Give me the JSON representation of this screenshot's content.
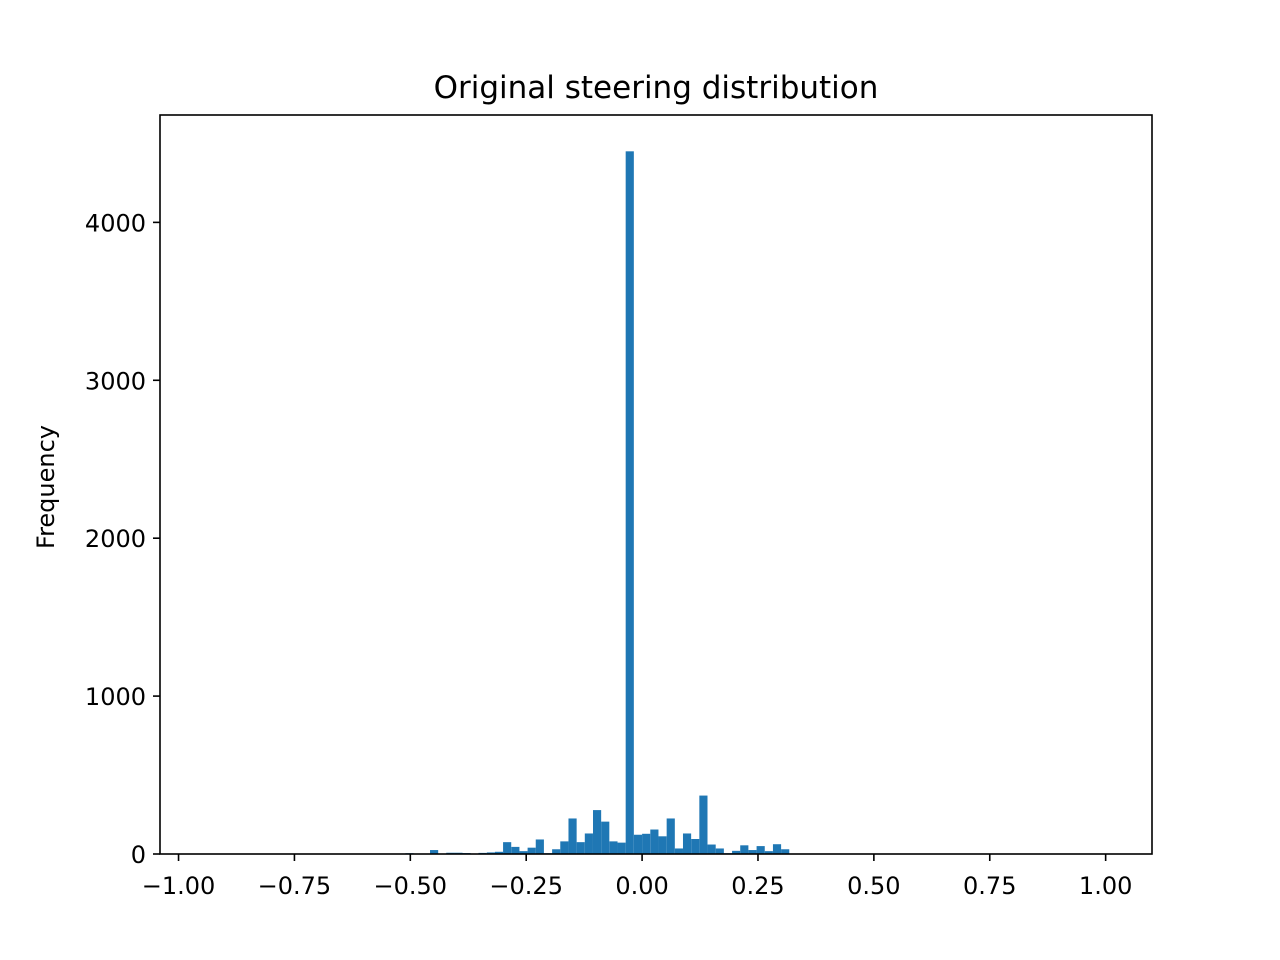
{
  "chart_data": {
    "type": "bar",
    "title": "Original steering distribution",
    "xlabel": "",
    "ylabel": "Frequency",
    "xlim": [
      -1.04,
      1.1
    ],
    "ylim": [
      0,
      4680
    ],
    "xticks": [
      -1.0,
      -0.75,
      -0.5,
      -0.25,
      0.0,
      0.25,
      0.5,
      0.75,
      1.0
    ],
    "xtick_labels": [
      "−1.00",
      "−0.75",
      "−0.50",
      "−0.25",
      "0.00",
      "0.25",
      "0.50",
      "0.75",
      "1.00"
    ],
    "yticks": [
      0,
      1000,
      2000,
      3000,
      4000
    ],
    "ytick_labels": [
      "0",
      "1000",
      "2000",
      "3000",
      "4000"
    ],
    "bar_color": "#1f77b4",
    "grid": false,
    "bin_width": 0.0176,
    "bins": [
      {
        "x": -0.5105,
        "count": 5
      },
      {
        "x": -0.4929,
        "count": 3
      },
      {
        "x": -0.4575,
        "count": 25
      },
      {
        "x": -0.4225,
        "count": 8
      },
      {
        "x": -0.405,
        "count": 8
      },
      {
        "x": -0.3875,
        "count": 6
      },
      {
        "x": -0.353,
        "count": 7
      },
      {
        "x": -0.335,
        "count": 10
      },
      {
        "x": -0.3175,
        "count": 14
      },
      {
        "x": -0.2999,
        "count": 75
      },
      {
        "x": -0.2822,
        "count": 45
      },
      {
        "x": -0.2646,
        "count": 18
      },
      {
        "x": -0.247,
        "count": 40
      },
      {
        "x": -0.2294,
        "count": 92
      },
      {
        "x": -0.2117,
        "count": 5
      },
      {
        "x": -0.1941,
        "count": 30
      },
      {
        "x": -0.1765,
        "count": 80
      },
      {
        "x": -0.1588,
        "count": 225
      },
      {
        "x": -0.1412,
        "count": 75
      },
      {
        "x": -0.1236,
        "count": 130
      },
      {
        "x": -0.1059,
        "count": 278
      },
      {
        "x": -0.0883,
        "count": 205
      },
      {
        "x": -0.0706,
        "count": 80
      },
      {
        "x": -0.053,
        "count": 72
      },
      {
        "x": -0.0354,
        "count": 4450
      },
      {
        "x": -0.0177,
        "count": 122
      },
      {
        "x": 0.0,
        "count": 128
      },
      {
        "x": 0.0177,
        "count": 155
      },
      {
        "x": 0.0353,
        "count": 112
      },
      {
        "x": 0.053,
        "count": 225
      },
      {
        "x": 0.0706,
        "count": 35
      },
      {
        "x": 0.0882,
        "count": 130
      },
      {
        "x": 0.1059,
        "count": 95
      },
      {
        "x": 0.1235,
        "count": 370
      },
      {
        "x": 0.1412,
        "count": 60
      },
      {
        "x": 0.1588,
        "count": 35
      },
      {
        "x": 0.1764,
        "count": 5
      },
      {
        "x": 0.1941,
        "count": 20
      },
      {
        "x": 0.2117,
        "count": 55
      },
      {
        "x": 0.2293,
        "count": 25
      },
      {
        "x": 0.247,
        "count": 50
      },
      {
        "x": 0.2646,
        "count": 18
      },
      {
        "x": 0.2823,
        "count": 62
      },
      {
        "x": 0.2999,
        "count": 30
      }
    ]
  }
}
